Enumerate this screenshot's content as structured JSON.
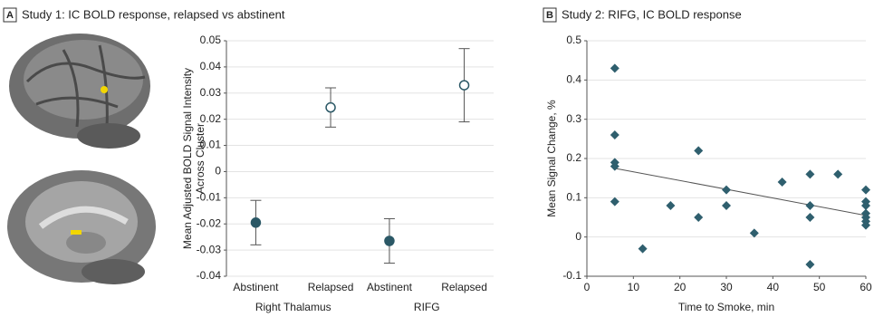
{
  "chart_data": [
    {
      "type": "errorbar",
      "panel": "A",
      "title": "Study 1: IC BOLD response, relapsed vs abstinent",
      "ylabel": [
        "Mean Adjusted BOLD Signal Intensity",
        "Across Cluster"
      ],
      "categories": [
        "Abstinent",
        "Relapsed",
        "Abstinent",
        "Relapsed"
      ],
      "groups": [
        "Right Thalamus",
        "RIFG"
      ],
      "values": [
        -0.0195,
        0.0245,
        -0.0265,
        0.033
      ],
      "errors": [
        0.0085,
        0.0075,
        0.0085,
        0.014
      ],
      "filled": [
        true,
        false,
        true,
        false
      ],
      "color": "#2b5866",
      "ylim": [
        -0.04,
        0.05
      ],
      "yticks": [
        -0.04,
        -0.03,
        -0.02,
        -0.01,
        0,
        0.01,
        0.02,
        0.03,
        0.04,
        0.05
      ],
      "grid": true
    },
    {
      "type": "scatter",
      "panel": "B",
      "title": "Study 2: RIFG, IC BOLD response",
      "xlabel": "Time to Smoke, min",
      "ylabel": "Mean Signal Change, %",
      "x": [
        6,
        6,
        6,
        6,
        6,
        12,
        18,
        24,
        24,
        30,
        30,
        36,
        42,
        48,
        48,
        48,
        48,
        54,
        60,
        60,
        60,
        60,
        60,
        60,
        60
      ],
      "y": [
        0.43,
        0.26,
        0.19,
        0.18,
        0.09,
        -0.03,
        0.08,
        0.22,
        0.05,
        0.12,
        0.08,
        0.01,
        0.14,
        0.16,
        0.08,
        0.05,
        -0.07,
        0.16,
        0.12,
        0.09,
        0.08,
        0.06,
        0.05,
        0.04,
        0.03
      ],
      "trend": {
        "x": [
          6,
          60
        ],
        "y": [
          0.175,
          0.055
        ]
      },
      "color": "#2f5f6e",
      "xlim": [
        0,
        60
      ],
      "xticks": [
        0,
        10,
        20,
        30,
        40,
        50,
        60
      ],
      "ylim": [
        -0.1,
        0.5
      ],
      "yticks": [
        -0.1,
        0,
        0.1,
        0.2,
        0.3,
        0.4,
        0.5
      ],
      "grid": true
    }
  ]
}
